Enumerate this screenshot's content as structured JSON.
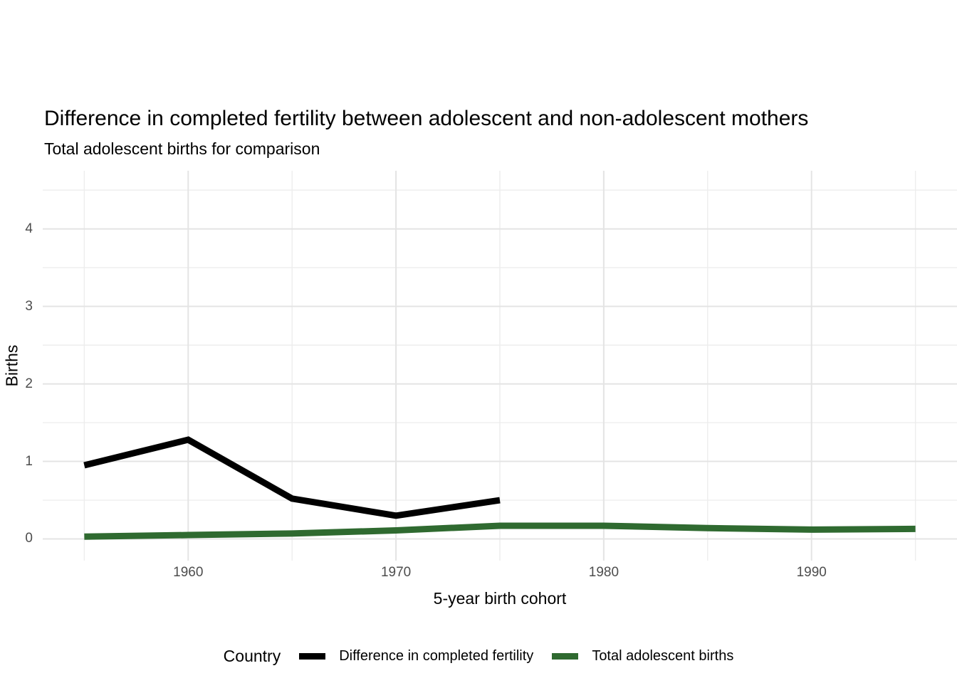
{
  "chart_data": {
    "type": "line",
    "title": "Difference in completed fertility between adolescent and non-adolescent mothers",
    "subtitle": "Total adolescent births for comparison",
    "xlabel": "5-year birth cohort",
    "ylabel": "Births",
    "series": [
      {
        "name": "Difference in completed fertility",
        "color": "#000000",
        "x": [
          1955,
          1960,
          1965,
          1970,
          1975
        ],
        "values": [
          0.95,
          1.28,
          0.52,
          0.3,
          0.5
        ]
      },
      {
        "name": "Total adolescent births",
        "color": "#2f6a30",
        "x": [
          1955,
          1960,
          1965,
          1970,
          1975,
          1980,
          1985,
          1990,
          1995
        ],
        "values": [
          0.03,
          0.05,
          0.07,
          0.11,
          0.17,
          0.17,
          0.14,
          0.12,
          0.13
        ]
      }
    ],
    "x_ticks": [
      1960,
      1970,
      1980,
      1990
    ],
    "x_minor_ticks": [
      1955,
      1965,
      1975,
      1985,
      1995
    ],
    "y_ticks": [
      0,
      1,
      2,
      3,
      4
    ],
    "y_minor_ticks": [
      0.5,
      1.5,
      2.5,
      3.5,
      4.5
    ],
    "xlim": [
      1953,
      1997
    ],
    "ylim": [
      -0.28,
      4.75
    ],
    "grid": true,
    "legend_position": "bottom",
    "legend": {
      "title": "Country"
    },
    "colors": {
      "background": "#ffffff",
      "grid_major": "#e4e4e4",
      "grid_minor": "#ededed",
      "tick_label": "#4d4d4d",
      "text": "#000000"
    }
  }
}
